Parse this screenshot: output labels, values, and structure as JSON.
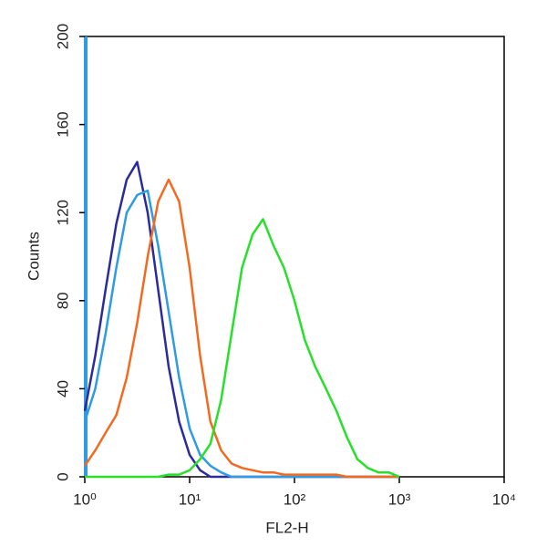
{
  "chart_data": {
    "type": "line",
    "xlabel": "FL2-H",
    "ylabel": "Counts",
    "xscale": "log",
    "x": [
      1,
      1.26,
      1.58,
      2,
      2.51,
      3.16,
      3.98,
      5.01,
      6.31,
      7.94,
      10,
      12.6,
      15.8,
      20,
      25.1,
      31.6,
      39.8,
      50.1,
      63.1,
      79.4,
      100,
      126,
      158,
      200,
      251,
      316,
      398,
      501,
      631,
      794,
      1000
    ],
    "series": [
      {
        "color": "#2b2b9c",
        "values": [
          30,
          55,
          85,
          115,
          135,
          143,
          120,
          85,
          50,
          25,
          10,
          3,
          0,
          0,
          0,
          0,
          0,
          0,
          0,
          0,
          0,
          0,
          0,
          0,
          0,
          0,
          0,
          0,
          0,
          0,
          0
        ]
      },
      {
        "color": "#2e9be3",
        "values": [
          25,
          40,
          65,
          95,
          120,
          128,
          130,
          105,
          75,
          45,
          22,
          10,
          5,
          2,
          0,
          0,
          0,
          0,
          0,
          0,
          0,
          0,
          0,
          0,
          0,
          0,
          0,
          0,
          0,
          0,
          0
        ]
      },
      {
        "color": "#f26a1f",
        "values": [
          5,
          12,
          20,
          28,
          45,
          70,
          100,
          125,
          135,
          125,
          95,
          55,
          25,
          12,
          6,
          4,
          3,
          2,
          2,
          1,
          1,
          1,
          1,
          1,
          1,
          0,
          0,
          0,
          0,
          0,
          0
        ]
      },
      {
        "color": "#27e02a",
        "values": [
          0,
          0,
          0,
          0,
          0,
          0,
          0,
          0,
          1,
          1,
          3,
          8,
          15,
          35,
          65,
          95,
          110,
          117,
          105,
          95,
          80,
          62,
          50,
          40,
          30,
          18,
          8,
          4,
          2,
          2,
          0
        ]
      }
    ],
    "xlim": [
      1,
      10000
    ],
    "xticks": [
      {
        "value": 1,
        "label": "10⁰"
      },
      {
        "value": 10,
        "label": "10¹"
      },
      {
        "value": 100,
        "label": "10²"
      },
      {
        "value": 1000,
        "label": "10³"
      },
      {
        "value": 10000,
        "label": "10⁴"
      }
    ],
    "ylim": [
      0,
      200
    ],
    "yticks": [
      0,
      40,
      80,
      120,
      160,
      200
    ]
  }
}
